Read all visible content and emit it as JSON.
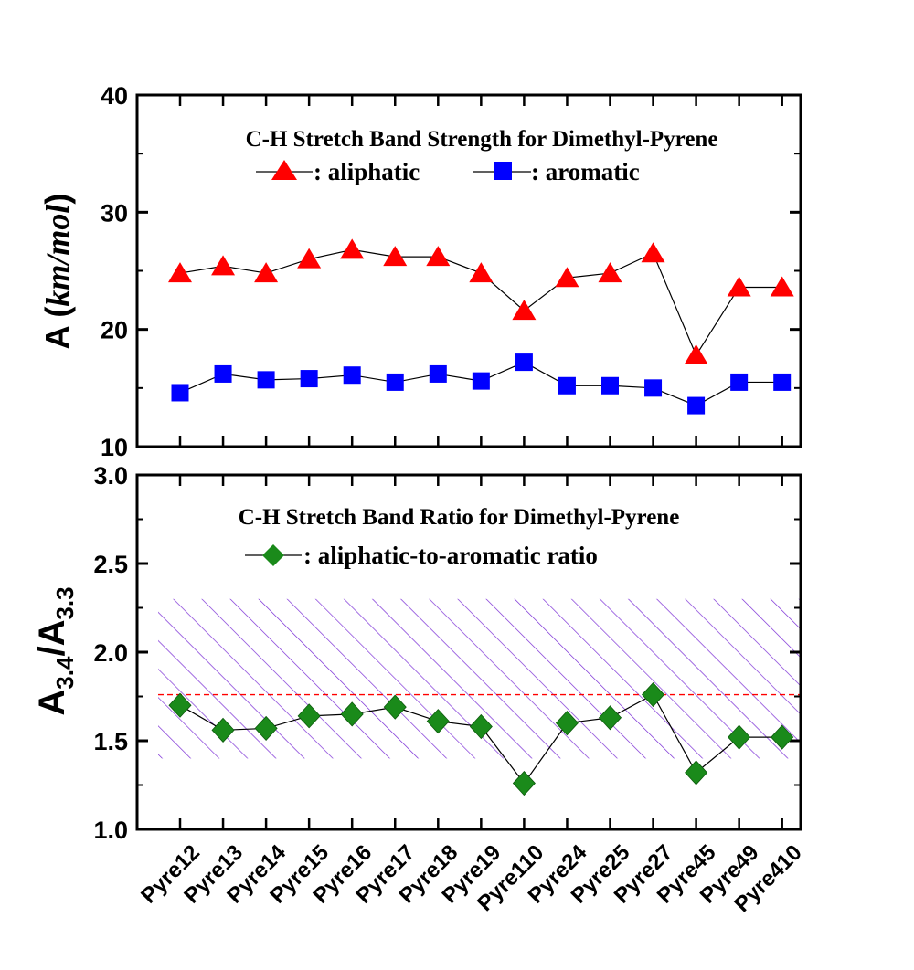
{
  "chart_data": [
    {
      "type": "line",
      "title": "C-H Stretch Band Strength for Dimethyl-Pyrene",
      "ylabel_main": "A (",
      "ylabel_unit": "km/mol",
      "ylabel_close": ")",
      "ylim": [
        10,
        40
      ],
      "yticks": [
        "10",
        "20",
        "30",
        "40"
      ],
      "categories": [
        "Pyre12",
        "Pyre13",
        "Pyre14",
        "Pyre15",
        "Pyre16",
        "Pyre17",
        "Pyre18",
        "Pyre19",
        "Pyre110",
        "Pyre24",
        "Pyre25",
        "Pyre27",
        "Pyre45",
        "Pyre49",
        "Pyre410"
      ],
      "legend_placement": "top",
      "series": [
        {
          "name": ": aliphatic",
          "marker": "triangle",
          "color": "#ff0000",
          "values": [
            24.8,
            25.4,
            24.8,
            26.0,
            26.8,
            26.2,
            26.2,
            24.8,
            21.6,
            24.4,
            24.8,
            26.5,
            17.8,
            23.6,
            23.6
          ]
        },
        {
          "name": ": aromatic",
          "marker": "square",
          "color": "#0000ff",
          "values": [
            14.6,
            16.2,
            15.7,
            15.8,
            16.1,
            15.5,
            16.2,
            15.6,
            17.2,
            15.2,
            15.2,
            15.0,
            13.5,
            15.5,
            15.5
          ]
        }
      ]
    },
    {
      "type": "line",
      "title": "C-H Stretch Band Ratio for Dimethyl-Pyrene",
      "ylabel_a1": "A",
      "ylabel_sub1": "3.4",
      "ylabel_slash": "/A",
      "ylabel_sub2": "3.3",
      "ylim": [
        1.0,
        3.0
      ],
      "yticks": [
        "1.0",
        "1.5",
        "2.0",
        "2.5",
        "3.0"
      ],
      "categories": [
        "Pyre12",
        "Pyre13",
        "Pyre14",
        "Pyre15",
        "Pyre16",
        "Pyre17",
        "Pyre18",
        "Pyre19",
        "Pyre110",
        "Pyre24",
        "Pyre25",
        "Pyre27",
        "Pyre45",
        "Pyre49",
        "Pyre410"
      ],
      "legend_placement": "top",
      "hatched_band": [
        1.4,
        2.3
      ],
      "reference_line": 1.76,
      "band_color": "#7b2fd6",
      "reference_color": "#ff0000",
      "series": [
        {
          "name": ": aliphatic-to-aromatic ratio",
          "marker": "diamond",
          "color": "#1a8a1a",
          "values": [
            1.7,
            1.56,
            1.57,
            1.64,
            1.65,
            1.69,
            1.61,
            1.58,
            1.26,
            1.6,
            1.63,
            1.76,
            1.32,
            1.52,
            1.52
          ]
        }
      ]
    }
  ]
}
